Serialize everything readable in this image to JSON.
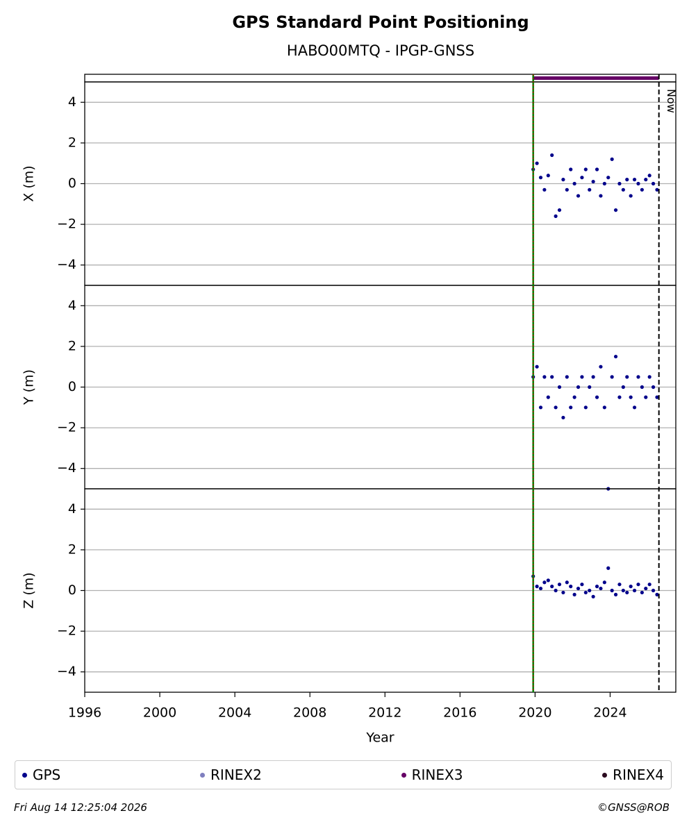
{
  "header": {
    "title": "GPS Standard Point Positioning",
    "subtitle": "HABO00MTQ - IPGP-GNSS"
  },
  "chart_data": [
    {
      "type": "scatter",
      "ylabel": "X (m)",
      "xlim": [
        1996,
        2027.5
      ],
      "ylim": [
        -5,
        5
      ],
      "yticks": [
        {
          "value": -4,
          "label": "−4"
        },
        {
          "value": -2,
          "label": "−2"
        },
        0,
        2,
        4
      ],
      "grid": true,
      "series": [
        {
          "name": "GPS",
          "color": "#00008b",
          "x": [
            2019.9,
            2020.1,
            2020.3,
            2020.5,
            2020.7,
            2020.9,
            2021.1,
            2021.3,
            2021.5,
            2021.7,
            2021.9,
            2022.1,
            2022.3,
            2022.5,
            2022.7,
            2022.9,
            2023.1,
            2023.3,
            2023.5,
            2023.7,
            2023.9,
            2024.1,
            2024.3,
            2024.5,
            2024.7,
            2024.9,
            2025.1,
            2025.3,
            2025.5,
            2025.7,
            2025.9,
            2026.1,
            2026.3,
            2026.5
          ],
          "values": [
            0.7,
            1.0,
            0.3,
            -0.3,
            0.4,
            1.4,
            -1.6,
            -1.3,
            0.2,
            -0.3,
            0.7,
            0,
            -0.6,
            0.3,
            0.7,
            -0.3,
            0.1,
            0.7,
            -0.6,
            0,
            0.3,
            1.2,
            -1.3,
            0,
            -0.3,
            0.2,
            -0.6,
            0.2,
            0,
            -0.3,
            0.2,
            0.4,
            0,
            -0.3
          ]
        }
      ]
    },
    {
      "type": "scatter",
      "ylabel": "Y (m)",
      "xlim": [
        1996,
        2027.5
      ],
      "ylim": [
        -5,
        5
      ],
      "yticks": [
        {
          "value": -4,
          "label": "−4"
        },
        {
          "value": -2,
          "label": "−2"
        },
        0,
        2,
        4
      ],
      "grid": true,
      "series": [
        {
          "name": "GPS",
          "color": "#00008b",
          "x": [
            2019.9,
            2020.1,
            2020.3,
            2020.5,
            2020.7,
            2020.9,
            2021.1,
            2021.3,
            2021.5,
            2021.7,
            2021.9,
            2022.1,
            2022.3,
            2022.5,
            2022.7,
            2022.9,
            2023.1,
            2023.3,
            2023.5,
            2023.7,
            2023.9,
            2024.1,
            2024.3,
            2024.5,
            2024.7,
            2024.9,
            2025.1,
            2025.3,
            2025.5,
            2025.7,
            2025.9,
            2026.1,
            2026.3,
            2026.5
          ],
          "values": [
            0.5,
            1.0,
            -1.0,
            0.5,
            -0.5,
            0.5,
            -1.0,
            0,
            -1.5,
            0.5,
            -1.0,
            -0.5,
            0,
            0.5,
            -1.0,
            0,
            0.5,
            -0.5,
            1.0,
            -1.0,
            -5,
            0.5,
            1.5,
            -0.5,
            0,
            0.5,
            -0.5,
            -1.0,
            0.5,
            0,
            -0.5,
            0.5,
            0,
            -0.5
          ]
        }
      ]
    },
    {
      "type": "scatter",
      "ylabel": "Z (m)",
      "xlabel": "Year",
      "xlim": [
        1996,
        2027.5
      ],
      "ylim": [
        -5,
        5
      ],
      "xticks": [
        1996,
        2000,
        2004,
        2008,
        2012,
        2016,
        2020,
        2024
      ],
      "yticks": [
        {
          "value": -4,
          "label": "−4"
        },
        {
          "value": -2,
          "label": "−2"
        },
        0,
        2,
        4
      ],
      "grid": true,
      "series": [
        {
          "name": "GPS",
          "color": "#00008b",
          "x": [
            2019.9,
            2020.1,
            2020.3,
            2020.5,
            2020.7,
            2020.9,
            2021.1,
            2021.3,
            2021.5,
            2021.7,
            2021.9,
            2022.1,
            2022.3,
            2022.5,
            2022.7,
            2022.9,
            2023.1,
            2023.3,
            2023.5,
            2023.7,
            2023.9,
            2024.1,
            2024.3,
            2024.5,
            2024.7,
            2024.9,
            2025.1,
            2025.3,
            2025.5,
            2025.7,
            2025.9,
            2026.1,
            2026.3,
            2026.5
          ],
          "values": [
            0.7,
            0.2,
            0.1,
            0.4,
            0.5,
            0.2,
            0,
            0.3,
            -0.1,
            0.4,
            0.2,
            -0.2,
            0.1,
            0.3,
            -0.1,
            0,
            -0.3,
            0.2,
            0.1,
            0.4,
            1.1,
            0,
            -0.2,
            0.3,
            0,
            -0.1,
            0.2,
            0,
            0.3,
            -0.1,
            0.1,
            0.3,
            0,
            -0.2
          ]
        }
      ]
    }
  ],
  "rinex3_availability": {
    "start": 2019.9,
    "end": 2026.6,
    "color": "#660066"
  },
  "event": {
    "x": 2019.9,
    "color": "#008000",
    "color2": "#cc0000"
  },
  "now": {
    "x": 2026.6,
    "label": "Now"
  },
  "legend": [
    {
      "name": "GPS",
      "color": "#00008b"
    },
    {
      "name": "RINEX2",
      "color": "#7f7fbf"
    },
    {
      "name": "RINEX3",
      "color": "#660066"
    },
    {
      "name": "RINEX4",
      "color": "#2b0a1f"
    }
  ],
  "footer": {
    "date": "Fri Aug 14 12:25:04 2026",
    "credit": "©GNSS@ROB"
  }
}
